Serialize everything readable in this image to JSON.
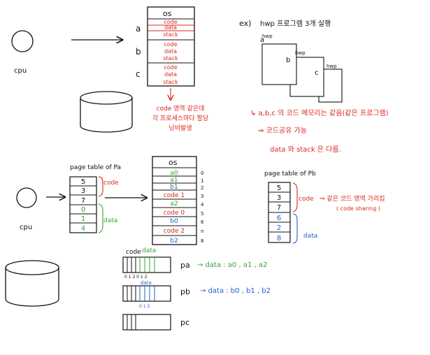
{
  "top": {
    "cpu": "cpu",
    "os": "os",
    "proc_labels": [
      "a",
      "b",
      "c"
    ],
    "memory_blocks": [
      [
        "code",
        "data",
        "stack"
      ],
      [
        "code",
        "data",
        "stack"
      ],
      [
        "code",
        "data",
        "stack"
      ]
    ],
    "note_lines": [
      "code 영역 같은데",
      "각 프로세스마다 할당",
      "낭비발생"
    ]
  },
  "example": {
    "title": "ex)",
    "heading": "hwp 프로그램  3개 실행",
    "window_title": "hwp",
    "window_labels": [
      "a",
      "b",
      "c"
    ],
    "notes": [
      "↳ a,b,c 의 코드 메모리는 같음(같은 프로그램)",
      "⇒ 코드공유 가능",
      "data 와 stack 은 다름."
    ]
  },
  "bottom": {
    "cpu": "cpu",
    "os": "os",
    "pt_a": {
      "title": "page table of Pa",
      "entries": [
        "5",
        "3",
        "7",
        "0",
        "1",
        "4"
      ],
      "code_label": "code",
      "data_label": "data"
    },
    "memory": {
      "frames": [
        "a0",
        "a1",
        "b1",
        "code 1",
        "a2",
        "code 0",
        "b0",
        "code 2",
        "b2"
      ],
      "frame_numbers": [
        "0",
        "1",
        "2",
        "3",
        "4",
        "5",
        "6",
        "n",
        "8"
      ]
    },
    "pt_b": {
      "title": "page table of Pb",
      "entries": [
        "5",
        "3",
        "7",
        "6",
        "2",
        "8"
      ],
      "code_label": "code",
      "code_note": "⇒ 같은 코드 영역 가리킴",
      "code_note2": "( code sharing )",
      "data_label": "data"
    },
    "address_spaces": {
      "header_code": "code",
      "header_data": "data",
      "rows": [
        {
          "label": "pa",
          "note": "→ data : a0 , a1 , a2",
          "indices": "0 1 2 0 1 2"
        },
        {
          "label": "pb",
          "note": "→ data : b0 , b1 , b2",
          "indices": "0 1 2",
          "sub": "data"
        },
        {
          "label": "pc",
          "note": "",
          "indices": ""
        }
      ]
    }
  }
}
